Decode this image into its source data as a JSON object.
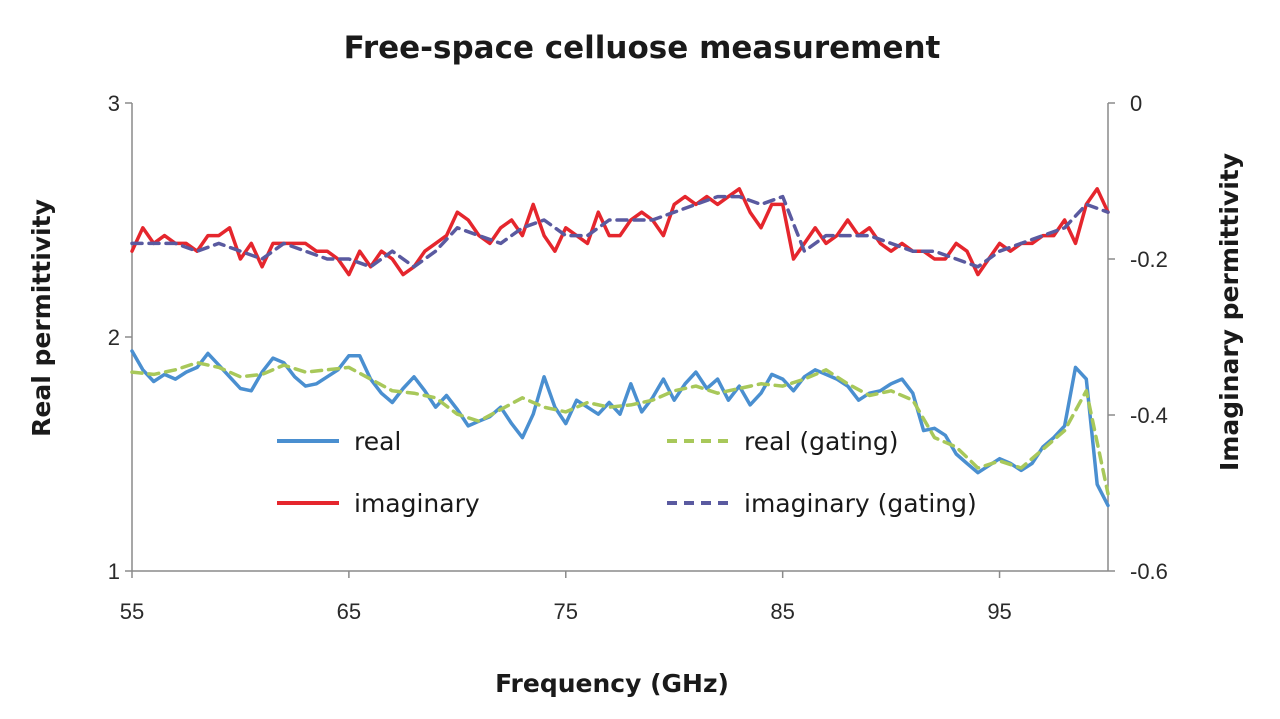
{
  "chart_data": {
    "type": "line",
    "title": "Free-space celluose measurement",
    "xlabel": "Frequency (GHz)",
    "ylabel": "Real permittivity",
    "y2label": "Imaginary permittivity",
    "xlim": [
      55,
      100
    ],
    "ylim": [
      1,
      3
    ],
    "y2lim": [
      -0.6,
      0
    ],
    "xticks": [
      "55",
      "65",
      "75",
      "85",
      "95"
    ],
    "yticks": [
      "1",
      "2",
      "3"
    ],
    "y2ticks": [
      "-0.6",
      "-0.4",
      "-0.2",
      "0"
    ],
    "grid": false,
    "legend_position": "inside-lower",
    "series": [
      {
        "name": "real",
        "axis": "left",
        "color": "#4a8fd0",
        "dash": "solid",
        "x": [
          55,
          55.5,
          56,
          56.5,
          57,
          57.5,
          58,
          58.5,
          59,
          59.5,
          60,
          60.5,
          61,
          61.5,
          62,
          62.5,
          63,
          63.5,
          64,
          64.5,
          65,
          65.5,
          66,
          66.5,
          67,
          67.5,
          68,
          68.5,
          69,
          69.5,
          70,
          70.5,
          71,
          71.5,
          72,
          72.5,
          73,
          73.5,
          74,
          74.5,
          75,
          75.5,
          76,
          76.5,
          77,
          77.5,
          78,
          78.5,
          79,
          79.5,
          80,
          80.5,
          81,
          81.5,
          82,
          82.5,
          83,
          83.5,
          84,
          84.5,
          85,
          85.5,
          86,
          86.5,
          87,
          87.5,
          88,
          88.5,
          89,
          89.5,
          90,
          90.5,
          91,
          91.5,
          92,
          92.5,
          93,
          93.5,
          94,
          94.5,
          95,
          95.5,
          96,
          96.5,
          97,
          97.5,
          98,
          98.5,
          99,
          99.5,
          100
        ],
        "y": [
          1.94,
          1.86,
          1.81,
          1.84,
          1.82,
          1.85,
          1.87,
          1.93,
          1.88,
          1.83,
          1.78,
          1.77,
          1.85,
          1.91,
          1.89,
          1.83,
          1.79,
          1.8,
          1.83,
          1.86,
          1.92,
          1.92,
          1.82,
          1.76,
          1.72,
          1.78,
          1.83,
          1.77,
          1.7,
          1.75,
          1.69,
          1.62,
          1.64,
          1.66,
          1.7,
          1.63,
          1.57,
          1.67,
          1.83,
          1.7,
          1.63,
          1.73,
          1.7,
          1.67,
          1.72,
          1.67,
          1.8,
          1.68,
          1.74,
          1.82,
          1.73,
          1.8,
          1.85,
          1.78,
          1.82,
          1.73,
          1.79,
          1.71,
          1.76,
          1.84,
          1.82,
          1.77,
          1.83,
          1.86,
          1.84,
          1.82,
          1.79,
          1.73,
          1.76,
          1.77,
          1.8,
          1.82,
          1.76,
          1.6,
          1.61,
          1.58,
          1.5,
          1.46,
          1.42,
          1.45,
          1.48,
          1.46,
          1.43,
          1.46,
          1.53,
          1.57,
          1.62,
          1.87,
          1.82,
          1.37,
          1.28
        ]
      },
      {
        "name": "real (gating)",
        "axis": "left",
        "color": "#a8c85a",
        "dash": "10,7",
        "x": [
          55,
          56,
          57,
          58,
          59,
          60,
          61,
          62,
          63,
          64,
          65,
          66,
          67,
          68,
          69,
          70,
          71,
          72,
          73,
          74,
          75,
          76,
          77,
          78,
          79,
          80,
          81,
          82,
          83,
          84,
          85,
          86,
          87,
          88,
          89,
          90,
          91,
          92,
          93,
          94,
          95,
          96,
          97,
          98,
          99,
          100
        ],
        "y": [
          1.85,
          1.84,
          1.86,
          1.89,
          1.87,
          1.83,
          1.84,
          1.88,
          1.85,
          1.86,
          1.87,
          1.82,
          1.77,
          1.76,
          1.74,
          1.67,
          1.64,
          1.69,
          1.74,
          1.7,
          1.68,
          1.72,
          1.7,
          1.71,
          1.73,
          1.77,
          1.79,
          1.76,
          1.78,
          1.8,
          1.79,
          1.82,
          1.86,
          1.8,
          1.75,
          1.77,
          1.73,
          1.57,
          1.53,
          1.44,
          1.47,
          1.44,
          1.52,
          1.6,
          1.77,
          1.33
        ]
      },
      {
        "name": "imaginary",
        "axis": "right",
        "color": "#e5262d",
        "dash": "solid",
        "x": [
          55,
          55.5,
          56,
          56.5,
          57,
          57.5,
          58,
          58.5,
          59,
          59.5,
          60,
          60.5,
          61,
          61.5,
          62,
          62.5,
          63,
          63.5,
          64,
          64.5,
          65,
          65.5,
          66,
          66.5,
          67,
          67.5,
          68,
          68.5,
          69,
          69.5,
          70,
          70.5,
          71,
          71.5,
          72,
          72.5,
          73,
          73.5,
          74,
          74.5,
          75,
          75.5,
          76,
          76.5,
          77,
          77.5,
          78,
          78.5,
          79,
          79.5,
          80,
          80.5,
          81,
          81.5,
          82,
          82.5,
          83,
          83.5,
          84,
          84.5,
          85,
          85.5,
          86,
          86.5,
          87,
          87.5,
          88,
          88.5,
          89,
          89.5,
          90,
          90.5,
          91,
          91.5,
          92,
          92.5,
          93,
          93.5,
          94,
          94.5,
          95,
          95.5,
          96,
          96.5,
          97,
          97.5,
          98,
          98.5,
          99,
          99.5,
          100
        ],
        "y": [
          -0.19,
          -0.16,
          -0.18,
          -0.17,
          -0.18,
          -0.18,
          -0.19,
          -0.17,
          -0.17,
          -0.16,
          -0.2,
          -0.18,
          -0.21,
          -0.18,
          -0.18,
          -0.18,
          -0.18,
          -0.19,
          -0.19,
          -0.2,
          -0.22,
          -0.19,
          -0.21,
          -0.19,
          -0.2,
          -0.22,
          -0.21,
          -0.19,
          -0.18,
          -0.17,
          -0.14,
          -0.15,
          -0.17,
          -0.18,
          -0.16,
          -0.15,
          -0.17,
          -0.13,
          -0.17,
          -0.19,
          -0.16,
          -0.17,
          -0.18,
          -0.14,
          -0.17,
          -0.17,
          -0.15,
          -0.14,
          -0.15,
          -0.17,
          -0.13,
          -0.12,
          -0.13,
          -0.12,
          -0.13,
          -0.12,
          -0.11,
          -0.14,
          -0.16,
          -0.13,
          -0.13,
          -0.2,
          -0.18,
          -0.16,
          -0.18,
          -0.17,
          -0.15,
          -0.17,
          -0.16,
          -0.18,
          -0.19,
          -0.18,
          -0.19,
          -0.19,
          -0.2,
          -0.2,
          -0.18,
          -0.19,
          -0.22,
          -0.2,
          -0.18,
          -0.19,
          -0.18,
          -0.18,
          -0.17,
          -0.17,
          -0.15,
          -0.18,
          -0.13,
          -0.11,
          -0.14
        ]
      },
      {
        "name": "imaginary (gating)",
        "axis": "right",
        "color": "#5a5aa0",
        "dash": "10,7",
        "x": [
          55,
          56,
          57,
          58,
          59,
          60,
          61,
          62,
          63,
          64,
          65,
          66,
          67,
          68,
          69,
          70,
          71,
          72,
          73,
          74,
          75,
          76,
          77,
          78,
          79,
          80,
          81,
          82,
          83,
          84,
          85,
          86,
          87,
          88,
          89,
          90,
          91,
          92,
          93,
          94,
          95,
          96,
          97,
          98,
          99,
          100
        ],
        "y": [
          -0.18,
          -0.18,
          -0.18,
          -0.19,
          -0.18,
          -0.19,
          -0.2,
          -0.18,
          -0.19,
          -0.2,
          -0.2,
          -0.21,
          -0.19,
          -0.21,
          -0.19,
          -0.16,
          -0.17,
          -0.18,
          -0.16,
          -0.15,
          -0.17,
          -0.17,
          -0.15,
          -0.15,
          -0.15,
          -0.14,
          -0.13,
          -0.12,
          -0.12,
          -0.13,
          -0.12,
          -0.19,
          -0.17,
          -0.17,
          -0.17,
          -0.18,
          -0.19,
          -0.19,
          -0.2,
          -0.21,
          -0.19,
          -0.18,
          -0.17,
          -0.16,
          -0.13,
          -0.14
        ]
      }
    ]
  }
}
